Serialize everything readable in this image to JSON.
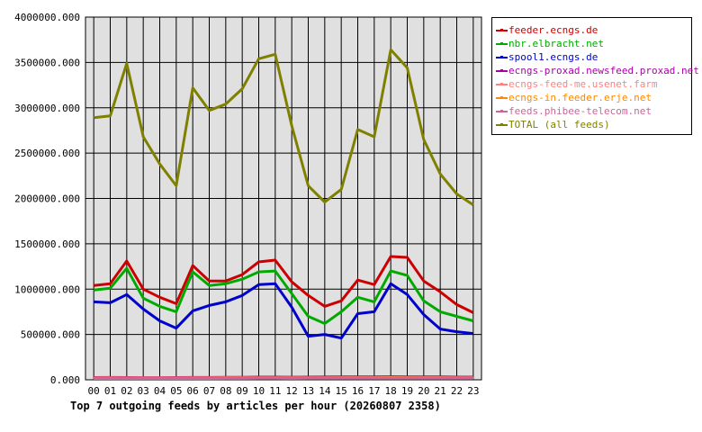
{
  "chart_data": {
    "type": "line",
    "title": "Top 7 outgoing feeds by articles per hour (20260807 2358)",
    "xlabel": "",
    "ylabel": "",
    "x": [
      "00",
      "01",
      "02",
      "03",
      "04",
      "05",
      "06",
      "07",
      "08",
      "09",
      "10",
      "11",
      "12",
      "13",
      "14",
      "15",
      "16",
      "17",
      "18",
      "19",
      "20",
      "21",
      "22",
      "23"
    ],
    "ylim": [
      0,
      4000000
    ],
    "y_ticks": [
      "0.000",
      "500000.000",
      "1000000.000",
      "1500000.000",
      "2000000.000",
      "2500000.000",
      "3000000.000",
      "3500000.000",
      "4000000.000"
    ],
    "grid": true,
    "legend_position": "top-right",
    "series": [
      {
        "name": "feeder.ecngs.de",
        "color": "#cc0000",
        "values": [
          1040000,
          1060000,
          1310000,
          1000000,
          910000,
          840000,
          1260000,
          1090000,
          1090000,
          1160000,
          1300000,
          1320000,
          1080000,
          930000,
          810000,
          870000,
          1100000,
          1050000,
          1360000,
          1350000,
          1090000,
          970000,
          830000,
          740000
        ]
      },
      {
        "name": "nbr.elbracht.net",
        "color": "#00aa00",
        "values": [
          990000,
          1010000,
          1230000,
          900000,
          810000,
          750000,
          1190000,
          1040000,
          1060000,
          1110000,
          1190000,
          1200000,
          950000,
          700000,
          620000,
          750000,
          910000,
          860000,
          1200000,
          1150000,
          870000,
          750000,
          700000,
          650000
        ]
      },
      {
        "name": "spool1.ecngs.de",
        "color": "#0000cc",
        "values": [
          860000,
          850000,
          940000,
          780000,
          650000,
          570000,
          760000,
          820000,
          860000,
          930000,
          1050000,
          1060000,
          800000,
          480000,
          500000,
          460000,
          730000,
          750000,
          1060000,
          940000,
          720000,
          560000,
          530000,
          510000
        ]
      },
      {
        "name": "ecngs-proxad.newsfeed.proxad.net",
        "color": "#aa00aa",
        "values": [
          25000,
          26000,
          25000,
          24000,
          24000,
          25000,
          26000,
          26000,
          27000,
          28000,
          30000,
          30000,
          29000,
          30000,
          31000,
          32000,
          32000,
          33000,
          34000,
          33000,
          33000,
          32000,
          30000,
          30000
        ]
      },
      {
        "name": "ecngs-feed-me.usenet.farm",
        "color": "#ff8080",
        "values": [
          20000,
          21000,
          20000,
          20000,
          20000,
          20000,
          21000,
          21000,
          22000,
          22000,
          23000,
          23000,
          22000,
          23000,
          23000,
          24000,
          24000,
          24000,
          25000,
          24000,
          24000,
          24000,
          23000,
          23000
        ]
      },
      {
        "name": "ecngs-in.feeder.erje.net",
        "color": "#ff8800",
        "values": [
          18000,
          18000,
          18000,
          18000,
          18000,
          18000,
          18000,
          18000,
          19000,
          19000,
          20000,
          20000,
          19000,
          20000,
          20000,
          20000,
          20000,
          20000,
          21000,
          21000,
          20000,
          20000,
          20000,
          20000
        ]
      },
      {
        "name": "feeds.phibee-telecom.net",
        "color": "#cc6699",
        "values": [
          15000,
          15000,
          15000,
          15000,
          15000,
          15000,
          15000,
          15000,
          16000,
          16000,
          17000,
          17000,
          16000,
          17000,
          17000,
          17000,
          17000,
          17000,
          18000,
          18000,
          17000,
          17000,
          17000,
          17000
        ]
      },
      {
        "name": "TOTAL (all feeds)",
        "color": "#808000",
        "values": [
          2890000,
          2910000,
          3490000,
          2680000,
          2380000,
          2140000,
          3220000,
          2970000,
          3040000,
          3210000,
          3540000,
          3590000,
          2800000,
          2140000,
          1960000,
          2100000,
          2760000,
          2680000,
          3640000,
          3440000,
          2650000,
          2270000,
          2050000,
          1930000
        ]
      }
    ]
  }
}
